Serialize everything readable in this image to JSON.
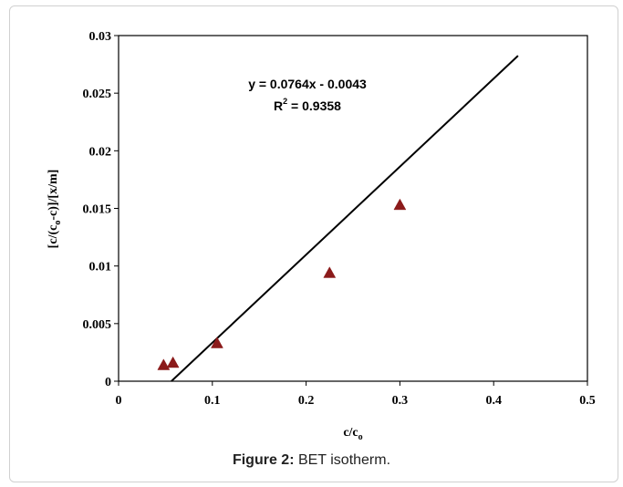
{
  "chart_data": {
    "type": "scatter",
    "title": "",
    "xlabel": {
      "base": "c/c",
      "sub": "o"
    },
    "ylabel": {
      "p1": "[c/(c",
      "sub": "o",
      "p2": "-c)]/[x/m]"
    },
    "xlim": [
      0,
      0.5
    ],
    "ylim": [
      0,
      0.03
    ],
    "xticks": [
      "0",
      "0.1",
      "0.2",
      "0.3",
      "0.4",
      "0.5"
    ],
    "yticks": [
      "0",
      "0.005",
      "0.01",
      "0.015",
      "0.02",
      "0.025",
      "0.03"
    ],
    "grid": false,
    "series": [
      {
        "marker": "triangle",
        "color": "#8b1a1a",
        "x": [
          0.048,
          0.058,
          0.105,
          0.225,
          0.3
        ],
        "y": [
          0.0014,
          0.0016,
          0.0033,
          0.0094,
          0.0153
        ]
      }
    ],
    "trendline": {
      "slope": 0.0764,
      "intercept": -0.0043,
      "x_range": [
        0.0563,
        0.426
      ],
      "color": "#000000"
    },
    "annotation": {
      "equation": "y = 0.0764x - 0.0043",
      "r2_base": "R",
      "r2_sup": "2",
      "r2_rest": " = 0.9358"
    }
  },
  "caption": {
    "label": "Figure 2:",
    "text": " BET isotherm."
  }
}
